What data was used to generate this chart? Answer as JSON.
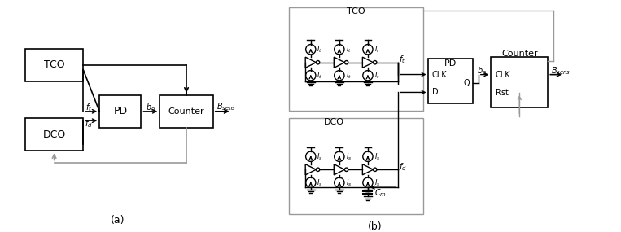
{
  "bg_color": "#ffffff",
  "line_color": "#000000",
  "gray_color": "#999999",
  "label_a": "(a)",
  "label_b": "(b)",
  "tco_label": "TCO",
  "dco_label": "DCO",
  "pd_label": "PD",
  "counter_label": "Counter",
  "ft_label": "$f_t$",
  "fd_label": "$f_d$",
  "bo_label": "$b_o$",
  "bsens_label": "$B_{sens}$",
  "clk_label": "CLK",
  "d_label": "D",
  "q_label": "Q",
  "rst_label": "Rst",
  "It_label": "$I_t$",
  "Is_label": "$I_s$",
  "Cm_label": "$C_m$"
}
